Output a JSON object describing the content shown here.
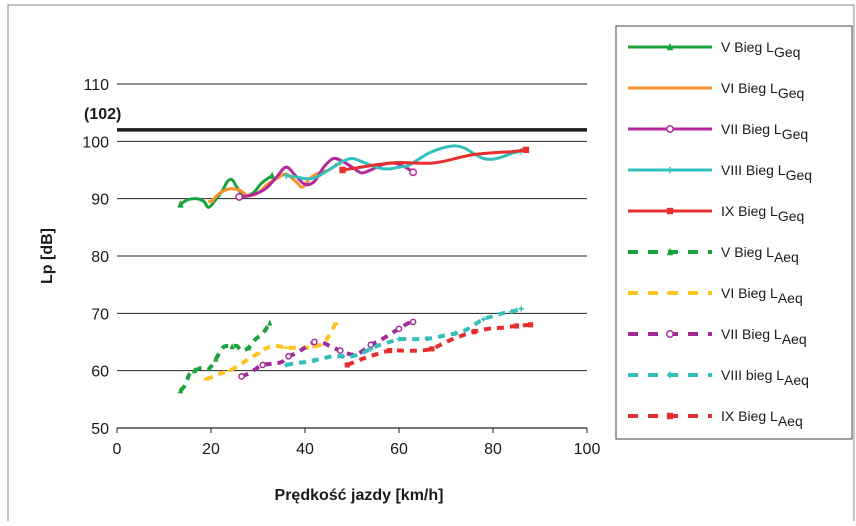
{
  "chart_data": {
    "type": "line",
    "title": "",
    "xlabel": "Prędkość jazdy [km/h]",
    "ylabel": "Lp  [dB]",
    "xlim": [
      0,
      100
    ],
    "ylim": [
      50,
      110
    ],
    "x_ticks": [
      "0",
      "20",
      "40",
      "60",
      "80",
      "100"
    ],
    "y_ticks": [
      "50",
      "60",
      "70",
      "80",
      "90",
      "100",
      "110"
    ],
    "grid": "horizontal",
    "legend_position": "right",
    "reference_line": {
      "label": "(102)",
      "value": 102,
      "color": "#1a1a1a"
    },
    "series": [
      {
        "name": "V Bieg L",
        "sub": "Geq",
        "color": "#1aa33c",
        "style": "solid",
        "marker": "triangle",
        "points": [
          [
            13.5,
            89
          ],
          [
            15,
            89.8
          ],
          [
            17,
            90
          ],
          [
            18.5,
            89.5
          ],
          [
            19.5,
            88.5
          ],
          [
            21,
            89.8
          ],
          [
            22.5,
            91.5
          ],
          [
            23.5,
            93
          ],
          [
            24.5,
            93.3
          ],
          [
            25.5,
            92
          ],
          [
            27,
            90.5
          ],
          [
            29,
            91
          ],
          [
            30.5,
            92.5
          ],
          [
            32,
            93.5
          ],
          [
            33,
            94
          ]
        ]
      },
      {
        "name": "VI Bieg L",
        "sub": "Geq",
        "color": "#f5922b",
        "style": "solid",
        "marker": "dash",
        "points": [
          [
            20,
            89.5
          ],
          [
            22,
            91
          ],
          [
            24,
            91.7
          ],
          [
            26,
            91.5
          ],
          [
            28,
            90.5
          ],
          [
            30,
            91
          ],
          [
            32,
            92.5
          ],
          [
            34,
            93.5
          ],
          [
            36,
            94.3
          ],
          [
            38,
            93
          ],
          [
            39.5,
            92
          ],
          [
            41,
            93.5
          ],
          [
            43,
            94.5
          ],
          [
            45,
            95
          ],
          [
            47,
            96
          ]
        ]
      },
      {
        "name": "VII Bieg L",
        "sub": "Geq",
        "color": "#b3289b",
        "style": "solid",
        "marker": "circle",
        "points": [
          [
            26,
            90.3
          ],
          [
            28,
            90.5
          ],
          [
            30,
            91
          ],
          [
            32,
            92
          ],
          [
            34,
            93.8
          ],
          [
            36,
            95.5
          ],
          [
            38,
            94
          ],
          [
            40,
            92.5
          ],
          [
            42,
            93
          ],
          [
            44,
            95.5
          ],
          [
            46,
            97
          ],
          [
            48,
            96.5
          ],
          [
            50,
            95.5
          ],
          [
            52,
            94.5
          ],
          [
            54,
            95
          ],
          [
            56,
            95.8
          ],
          [
            58,
            96.2
          ],
          [
            60,
            96
          ],
          [
            62,
            95.2
          ],
          [
            63,
            94.6
          ]
        ]
      },
      {
        "name": "VIII Bieg L",
        "sub": "Geq",
        "color": "#33bfbb",
        "style": "solid",
        "marker": "plus",
        "points": [
          [
            36,
            94
          ],
          [
            38,
            93.8
          ],
          [
            40,
            93.5
          ],
          [
            42,
            93.6
          ],
          [
            44,
            94.5
          ],
          [
            46,
            95.5
          ],
          [
            48,
            96.5
          ],
          [
            50,
            97
          ],
          [
            52,
            96.5
          ],
          [
            54,
            95.8
          ],
          [
            56,
            95.3
          ],
          [
            58,
            95.2
          ],
          [
            60,
            95.5
          ],
          [
            62,
            95.8
          ],
          [
            64,
            96.8
          ],
          [
            66,
            97.8
          ],
          [
            68,
            98.5
          ],
          [
            70,
            99
          ],
          [
            72,
            99.2
          ],
          [
            74,
            98.8
          ],
          [
            76,
            97.8
          ],
          [
            78,
            97
          ],
          [
            80,
            96.9
          ],
          [
            82,
            97.3
          ],
          [
            84,
            97.9
          ],
          [
            86,
            98.3
          ]
        ]
      },
      {
        "name": "IX Bieg L",
        "sub": "Geq",
        "color": "#e62e2e",
        "style": "solid",
        "marker": "square",
        "points": [
          [
            48,
            95
          ],
          [
            52,
            95.5
          ],
          [
            56,
            96
          ],
          [
            60,
            96.3
          ],
          [
            64,
            96.2
          ],
          [
            67,
            96.2
          ],
          [
            70,
            96.6
          ],
          [
            73,
            97.2
          ],
          [
            76,
            97.7
          ],
          [
            80,
            98
          ],
          [
            84,
            98.2
          ],
          [
            87,
            98.5
          ]
        ]
      },
      {
        "name": "V Bieg L",
        "sub": "Aeq",
        "color": "#1aa33c",
        "style": "dashed",
        "marker": "triangle",
        "points": [
          [
            13.5,
            56.5
          ],
          [
            14.5,
            57.5
          ],
          [
            15.5,
            59.5
          ],
          [
            16.5,
            60
          ],
          [
            18,
            60.5
          ],
          [
            19.5,
            60.3
          ],
          [
            21,
            62
          ],
          [
            22.5,
            64
          ],
          [
            23.5,
            64.3
          ],
          [
            24.5,
            64.2
          ],
          [
            25.5,
            64.3
          ],
          [
            26.5,
            63.5
          ],
          [
            28,
            64
          ],
          [
            29.5,
            65.5
          ],
          [
            31,
            66.5
          ],
          [
            32.5,
            68.3
          ]
        ]
      },
      {
        "name": "VI Bieg L",
        "sub": "Aeq",
        "color": "#fcc421",
        "style": "dashed",
        "marker": "dash",
        "points": [
          [
            19,
            58.5
          ],
          [
            20.5,
            59
          ],
          [
            22,
            59.5
          ],
          [
            24,
            60
          ],
          [
            26,
            61
          ],
          [
            28,
            62
          ],
          [
            30,
            63
          ],
          [
            32,
            64
          ],
          [
            34,
            64.3
          ],
          [
            36,
            64
          ],
          [
            38,
            64
          ],
          [
            40,
            64
          ],
          [
            42,
            64.2
          ],
          [
            44,
            64.8
          ],
          [
            45,
            66
          ],
          [
            46.5,
            68.2
          ]
        ]
      },
      {
        "name": "VII Bieg L",
        "sub": "Aeq",
        "color": "#a02c97",
        "style": "dashed",
        "marker": "circle",
        "points": [
          [
            26.5,
            59
          ],
          [
            28,
            59.5
          ],
          [
            29.5,
            60.3
          ],
          [
            31,
            61
          ],
          [
            33,
            61.2
          ],
          [
            35,
            61.5
          ],
          [
            36.5,
            62.5
          ],
          [
            38,
            63
          ],
          [
            40,
            64
          ],
          [
            42,
            65
          ],
          [
            43.5,
            65
          ],
          [
            45.5,
            64.2
          ],
          [
            47.5,
            63.5
          ],
          [
            50,
            62.8
          ],
          [
            52,
            63.3
          ],
          [
            54,
            64.5
          ],
          [
            56,
            65.3
          ],
          [
            58,
            66.3
          ],
          [
            60,
            67.3
          ],
          [
            62,
            68.3
          ],
          [
            63,
            68.5
          ]
        ]
      },
      {
        "name": "VIII bieg L",
        "sub": "Aeq",
        "color": "#33bfbb",
        "style": "dashed",
        "marker": "plus",
        "points": [
          [
            36,
            61
          ],
          [
            38,
            61.3
          ],
          [
            40,
            61.5
          ],
          [
            42,
            61.8
          ],
          [
            44,
            62.2
          ],
          [
            46,
            62.5
          ],
          [
            48,
            62.5
          ],
          [
            50,
            62.5
          ],
          [
            52,
            63
          ],
          [
            54,
            63.8
          ],
          [
            56,
            64.5
          ],
          [
            58,
            65
          ],
          [
            60,
            65.5
          ],
          [
            62,
            65.5
          ],
          [
            64,
            65.5
          ],
          [
            66,
            65.6
          ],
          [
            68,
            65.8
          ],
          [
            70,
            66.2
          ],
          [
            72,
            66.5
          ],
          [
            74,
            67
          ],
          [
            76,
            68
          ],
          [
            78,
            69
          ],
          [
            80,
            69.5
          ],
          [
            82,
            70
          ],
          [
            84,
            70.3
          ],
          [
            86,
            70.8
          ]
        ]
      },
      {
        "name": "IX Bieg L",
        "sub": "Aeq",
        "color": "#e62e2e",
        "style": "dashed",
        "marker": "square",
        "points": [
          [
            49,
            61
          ],
          [
            52,
            62
          ],
          [
            55,
            62.8
          ],
          [
            58,
            63.5
          ],
          [
            61,
            63.5
          ],
          [
            64,
            63.5
          ],
          [
            67,
            63.8
          ],
          [
            70,
            65
          ],
          [
            73,
            66
          ],
          [
            76,
            66.8
          ],
          [
            79,
            67.3
          ],
          [
            82,
            67.5
          ],
          [
            85,
            67.8
          ],
          [
            88,
            68
          ]
        ]
      }
    ]
  }
}
